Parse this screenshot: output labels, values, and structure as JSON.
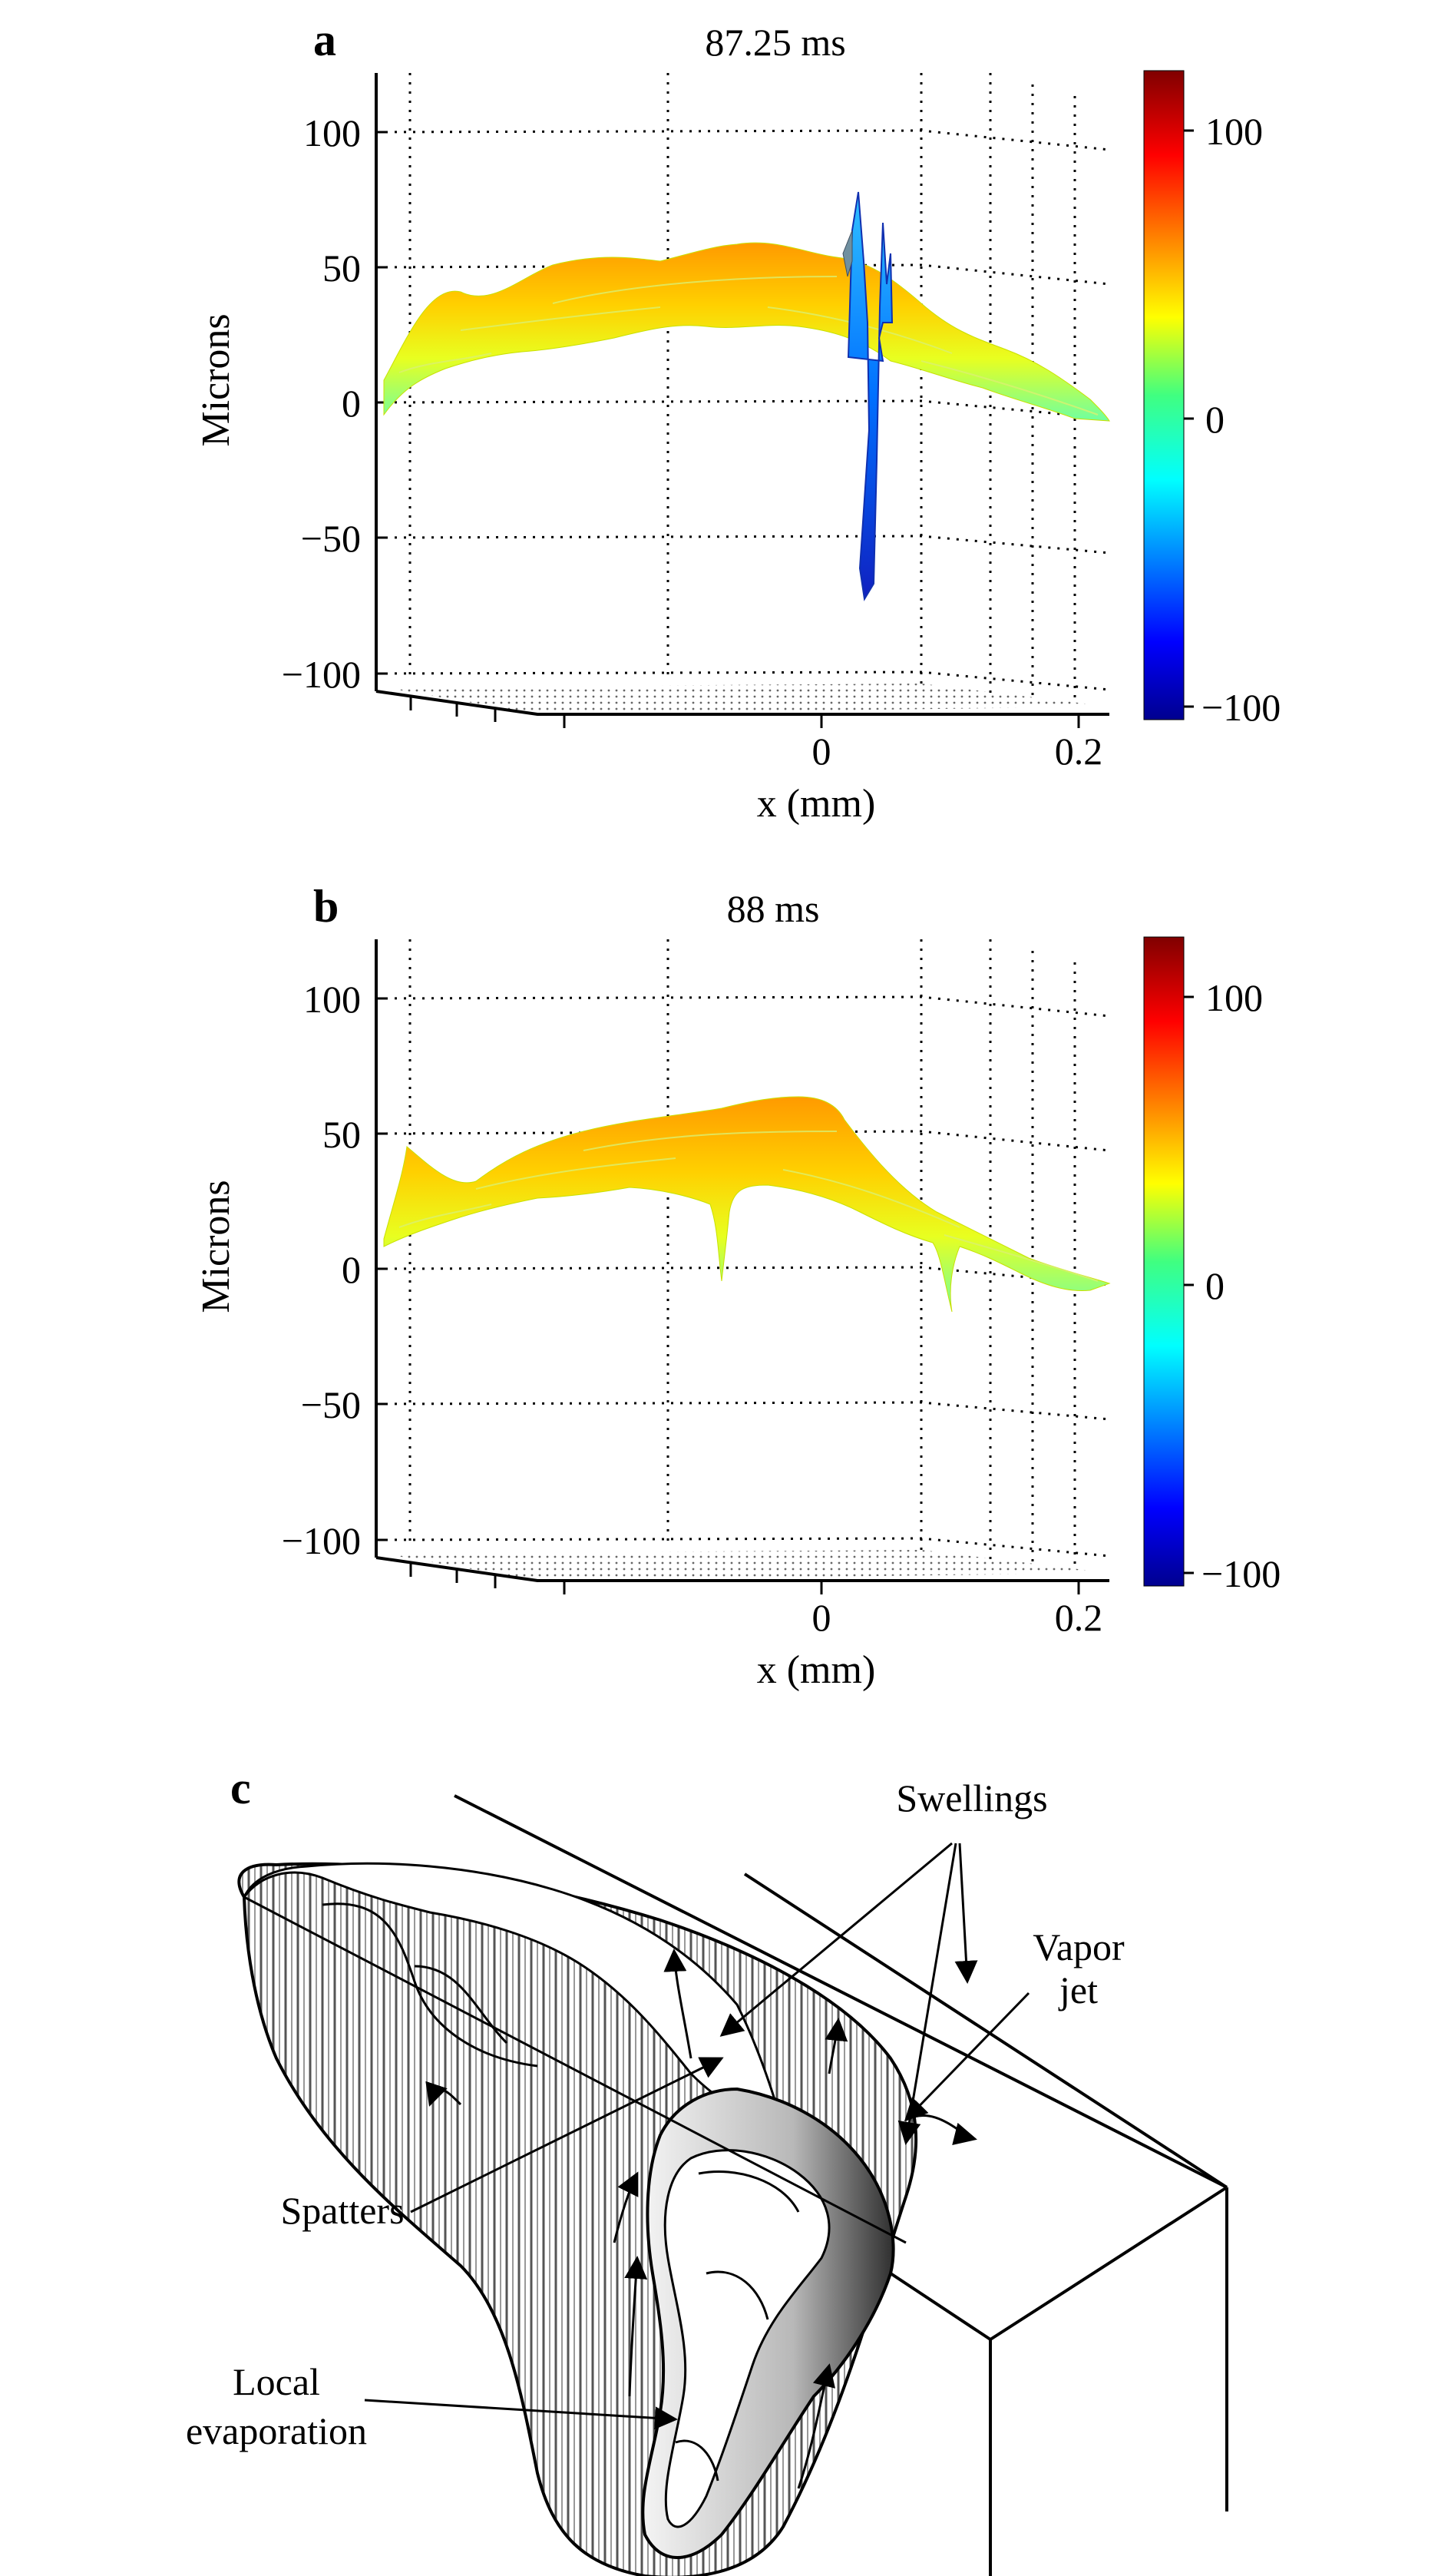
{
  "figure": {
    "panels": [
      {
        "id": "a",
        "letter": "a",
        "title": "87.25 ms",
        "ylabel": "Microns",
        "xlabel": "x (mm)",
        "yticks": [
          "100",
          "50",
          "0",
          "−50",
          "−100"
        ],
        "xticks": [
          "0",
          "0.2"
        ],
        "colorbar_ticks": [
          "100",
          "0",
          "−100"
        ]
      },
      {
        "id": "b",
        "letter": "b",
        "title": "88 ms",
        "ylabel": "Microns",
        "xlabel": "x (mm)",
        "yticks": [
          "100",
          "50",
          "0",
          "−50",
          "−100"
        ],
        "xticks": [
          "0",
          "0.2"
        ],
        "colorbar_ticks": [
          "100",
          "0",
          "−100"
        ]
      }
    ],
    "diagram": {
      "letter": "c",
      "labels": {
        "swellings": "Swellings",
        "vapor_jet_1": "Vapor",
        "vapor_jet_2": "jet",
        "spatters": "Spatters",
        "local_evap_1": "Local",
        "local_evap_2": "evaporation"
      }
    }
  },
  "chart_data": [
    {
      "type": "surface",
      "title": "87.25 ms",
      "xlabel": "x (mm)",
      "ylabel": "Microns",
      "zlim": [
        -100,
        120
      ],
      "colorbar": {
        "colormap": "jet",
        "range": [
          -100,
          120
        ]
      },
      "grid": true,
      "profile": {
        "x": [
          -0.4,
          -0.36,
          -0.32,
          -0.28,
          -0.24,
          -0.2,
          -0.16,
          -0.12,
          -0.08,
          -0.04,
          0.0,
          0.02,
          0.03,
          0.04,
          0.06,
          0.1,
          0.14,
          0.18,
          0.22
        ],
        "z": [
          5,
          40,
          33,
          40,
          48,
          52,
          50,
          52,
          55,
          55,
          40,
          35,
          -65,
          50,
          25,
          20,
          12,
          5,
          -5
        ]
      }
    },
    {
      "type": "surface",
      "title": "88 ms",
      "xlabel": "x (mm)",
      "ylabel": "Microns",
      "zlim": [
        -100,
        120
      ],
      "colorbar": {
        "colormap": "jet",
        "range": [
          -100,
          120
        ]
      },
      "grid": true,
      "profile": {
        "x": [
          -0.4,
          -0.36,
          -0.32,
          -0.28,
          -0.24,
          -0.2,
          -0.16,
          -0.12,
          -0.08,
          -0.06,
          -0.04,
          0.0,
          0.04,
          0.08,
          0.1,
          0.14,
          0.18,
          0.22
        ],
        "z": [
          15,
          45,
          28,
          38,
          45,
          50,
          50,
          52,
          50,
          0,
          55,
          60,
          35,
          20,
          -8,
          10,
          5,
          0
        ]
      }
    }
  ]
}
